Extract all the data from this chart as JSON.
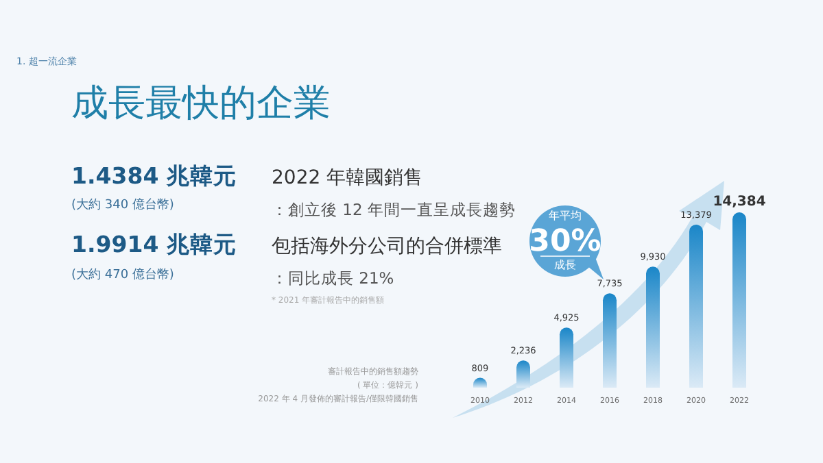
{
  "chart_data": {
    "type": "bar",
    "title": "成長最快的企業",
    "subtitle": "1. 超一流企業",
    "categories": [
      "2010",
      "2012",
      "2014",
      "2016",
      "2018",
      "2020",
      "2022"
    ],
    "values": [
      809,
      2236,
      4925,
      7735,
      9930,
      13379,
      14384
    ],
    "color": "#1a86c8",
    "value_labels": [
      "809",
      "2,236",
      "4,925",
      "7,735",
      "9,930",
      "13,379",
      "14,384"
    ],
    "annotations": [
      "1.4384 兆韓元",
      "(大約 340 億台幣)",
      "2022 年韓國銷售",
      "：創立後 12 年間一直呈成長趨勢",
      "1.9914 兆韓元",
      "(大約 470 億台幣)",
      "包括海外分公司的合併標準",
      "：同比成長 21%",
      "* 2021 年審計報告中的銷售額",
      "年平均",
      "30%",
      "成長",
      "審計報告中的銷售額趨勢",
      "( 單位：億韓元 )",
      "2022 年 4 月發佈的審計報告/僅限韓國銷售"
    ]
  }
}
